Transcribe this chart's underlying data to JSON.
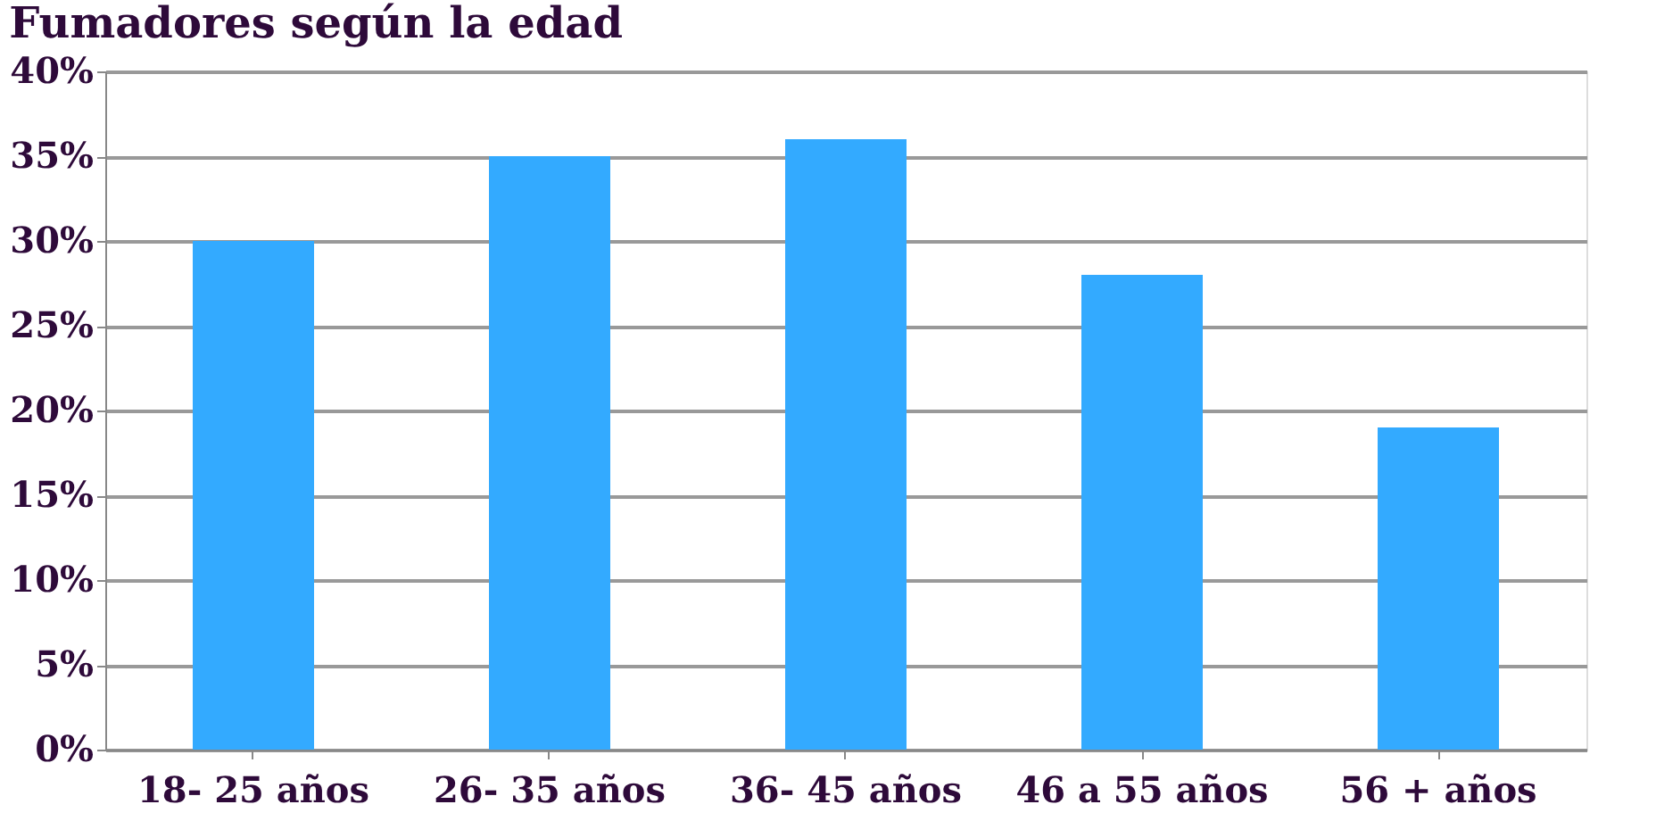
{
  "chart_data": {
    "type": "bar",
    "title": "Fumadores según la edad",
    "categories": [
      "18- 25 años",
      "26- 35 años",
      "36- 45 años",
      "46 a 55 años",
      "56 + años"
    ],
    "values": [
      30,
      35,
      36,
      28,
      19
    ],
    "color": "#33aaff",
    "ylim": [
      0,
      40
    ],
    "yticks": [
      {
        "value": 0,
        "label": "0%"
      },
      {
        "value": 5,
        "label": "5%"
      },
      {
        "value": 10,
        "label": "10%"
      },
      {
        "value": 15,
        "label": "15%"
      },
      {
        "value": 20,
        "label": "20%"
      },
      {
        "value": 25,
        "label": "25%"
      },
      {
        "value": 30,
        "label": "30%"
      },
      {
        "value": 35,
        "label": "35%"
      },
      {
        "value": 40,
        "label": "40%"
      }
    ],
    "grid": "y"
  }
}
